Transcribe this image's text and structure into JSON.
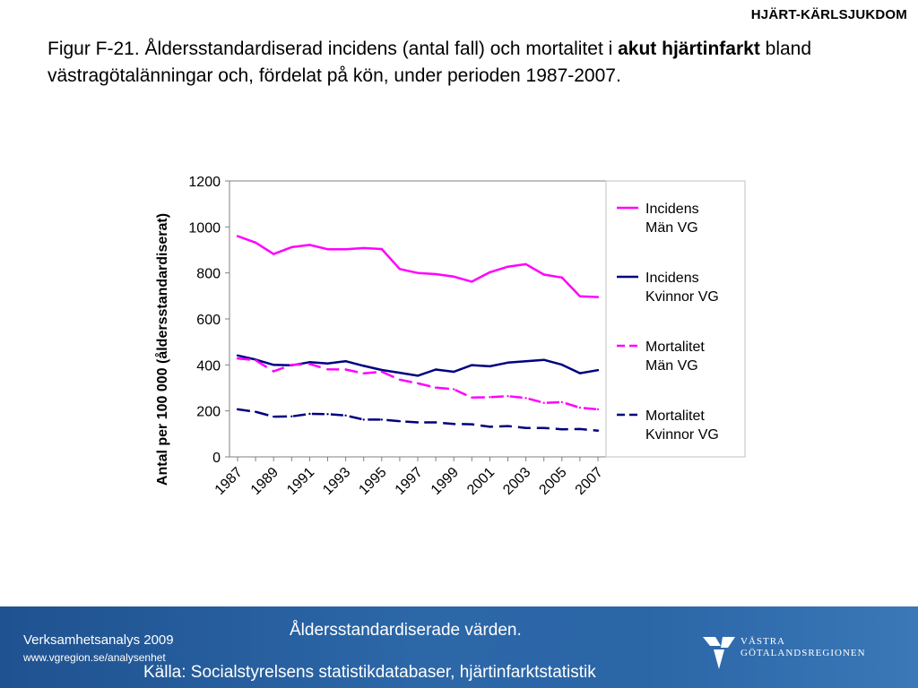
{
  "header": {
    "section_label": "HJÄRT-KÄRLSJUKDOM",
    "title_part1": "Figur F-21. Åldersstandardiserad incidens (antal fall) och mortalitet i ",
    "title_bold": "akut hjärtinfarkt",
    "title_part2": " bland västragötalänningar och, fördelat på kön, under perioden 1987-2007."
  },
  "chart_data": {
    "type": "line",
    "title": "",
    "xlabel": "",
    "ylabel": "Antal per 100 000 (åldersstandardiserat)",
    "ylim": [
      0,
      1200
    ],
    "yticks": [
      0,
      200,
      400,
      600,
      800,
      1000,
      1200
    ],
    "x": [
      1987,
      1988,
      1989,
      1990,
      1991,
      1992,
      1993,
      1994,
      1995,
      1996,
      1997,
      1998,
      1999,
      2000,
      2001,
      2002,
      2003,
      2004,
      2005,
      2006,
      2007
    ],
    "xtick_labels": [
      "1987",
      "1989",
      "1991",
      "1993",
      "1995",
      "1997",
      "1999",
      "2001",
      "2003",
      "2005",
      "2007"
    ],
    "grid": false,
    "legend_position": "right",
    "series": [
      {
        "name": "Incidens Män VG",
        "legend_lines": [
          "Incidens",
          "Män VG"
        ],
        "color": "#ff00ff",
        "dash": "solid",
        "values": [
          960,
          932,
          882,
          912,
          922,
          903,
          903,
          908,
          904,
          817,
          800,
          795,
          784,
          762,
          803,
          827,
          838,
          793,
          780,
          698,
          695
        ]
      },
      {
        "name": "Incidens Kvinnor VG",
        "legend_lines": [
          "Incidens",
          "Kvinnor VG"
        ],
        "color": "#000080",
        "dash": "solid",
        "values": [
          441,
          423,
          400,
          398,
          412,
          406,
          416,
          396,
          378,
          366,
          353,
          380,
          370,
          399,
          394,
          410,
          416,
          422,
          401,
          364,
          377
        ]
      },
      {
        "name": "Mortalitet Män VG",
        "legend_lines": [
          "Mortalitet",
          "Män VG"
        ],
        "color": "#ff00ff",
        "dash": "dashed",
        "values": [
          428,
          420,
          372,
          400,
          404,
          381,
          380,
          363,
          370,
          336,
          320,
          301,
          294,
          258,
          260,
          264,
          256,
          235,
          238,
          214,
          207
        ]
      },
      {
        "name": "Mortalitet Kvinnor VG",
        "legend_lines": [
          "Mortalitet",
          "Kvinnor VG"
        ],
        "color": "#000080",
        "dash": "dashed",
        "values": [
          207,
          196,
          175,
          176,
          187,
          186,
          180,
          162,
          162,
          155,
          150,
          150,
          143,
          142,
          131,
          134,
          126,
          126,
          120,
          121,
          114
        ]
      }
    ]
  },
  "footer": {
    "org": "Verksamhetsanalys 2009",
    "url": "www.vgregion.se/analysenhet",
    "note": "Åldersstandardiserade värden.",
    "source": "Källa: Socialstyrelsens statistikdatabaser, hjärtinfarktstatistik",
    "logo_line1": "VÄSTRA",
    "logo_line2": "GÖTALANDSREGIONEN",
    "logo_icon": "vastra-gotalandsregionen-logo"
  }
}
